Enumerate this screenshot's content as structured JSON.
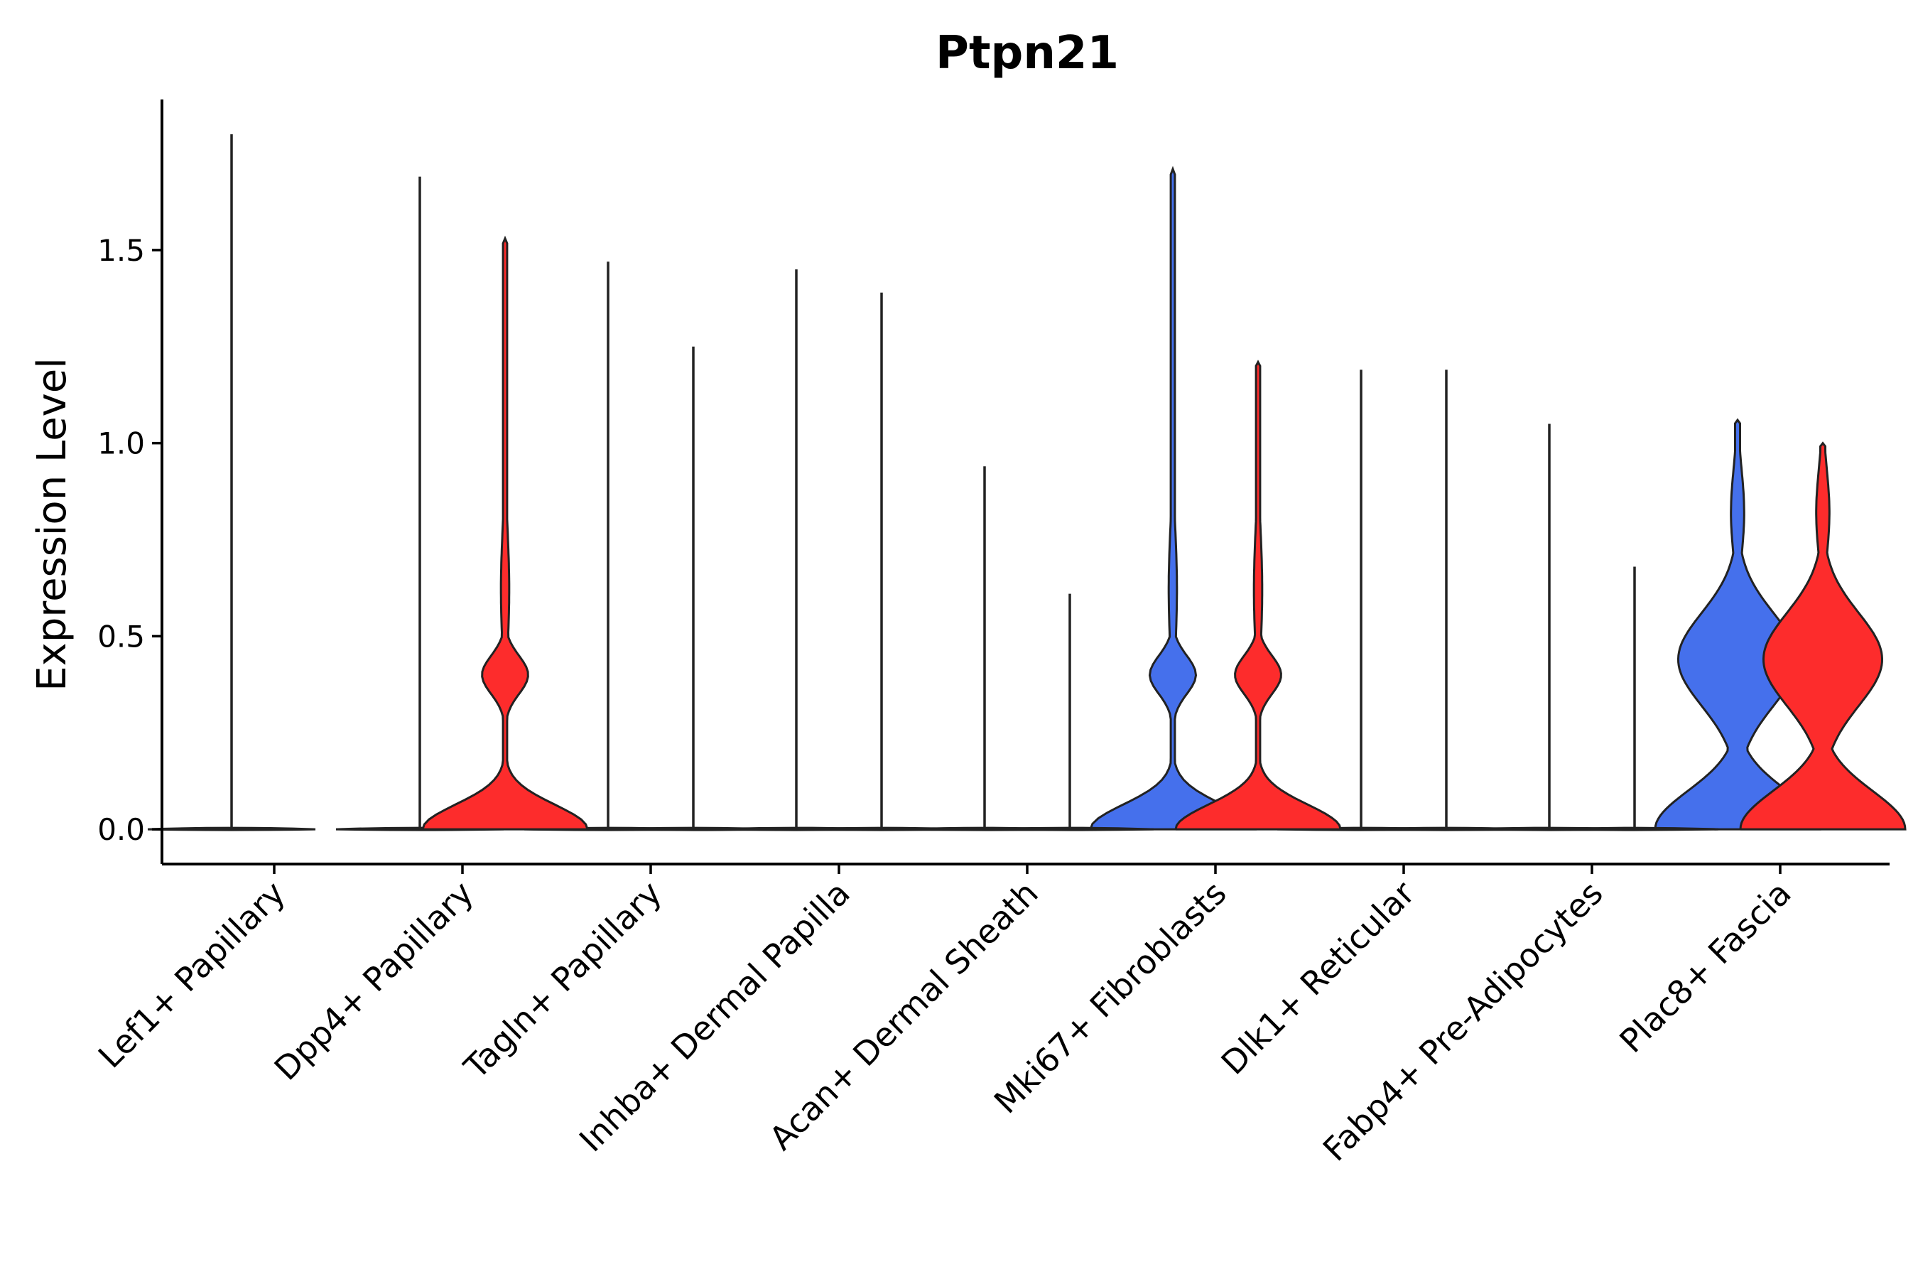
{
  "chart_data": {
    "type": "violin",
    "title": "Ptpn21",
    "xlabel": "",
    "ylabel": "Expression Level",
    "ylim": [
      -0.09,
      1.89
    ],
    "yticks": [
      0.0,
      0.5,
      1.0,
      1.5
    ],
    "ytick_labels": [
      "0.0",
      "0.5",
      "1.0",
      "1.5"
    ],
    "colors": {
      "group1": "#4570ec",
      "group2": "#fd2c2c",
      "outline": "#222222"
    },
    "categories": [
      "Lef1+ Papillary",
      "Dpp4+ Papillary",
      "Tagln+ Papillary",
      "Inhba+ Dermal Papilla",
      "Acan+ Dermal Sheath",
      "Mki67+ Fibroblasts",
      "Dlk1+ Reticular",
      "Fabp4+ Pre-Adipocytes",
      "Plac8+ Fascia"
    ],
    "series": [
      {
        "name": "group1",
        "color": "#4570ec",
        "max": [
          1.8,
          1.69,
          1.47,
          1.45,
          0.94,
          1.71,
          1.19,
          1.05,
          1.06
        ],
        "shape": [
          "flat",
          "flat",
          "flat",
          "flat",
          "flat",
          "wide",
          "flat",
          "flat",
          "bimodal"
        ]
      },
      {
        "name": "group2",
        "color": "#fd2c2c",
        "max": [
          0.0,
          1.53,
          1.25,
          1.39,
          0.61,
          1.21,
          1.19,
          0.68,
          1.0
        ],
        "shape": [
          "flat",
          "wide",
          "flat",
          "flat",
          "flat",
          "wide",
          "flat",
          "flat",
          "bimodal"
        ]
      }
    ]
  }
}
